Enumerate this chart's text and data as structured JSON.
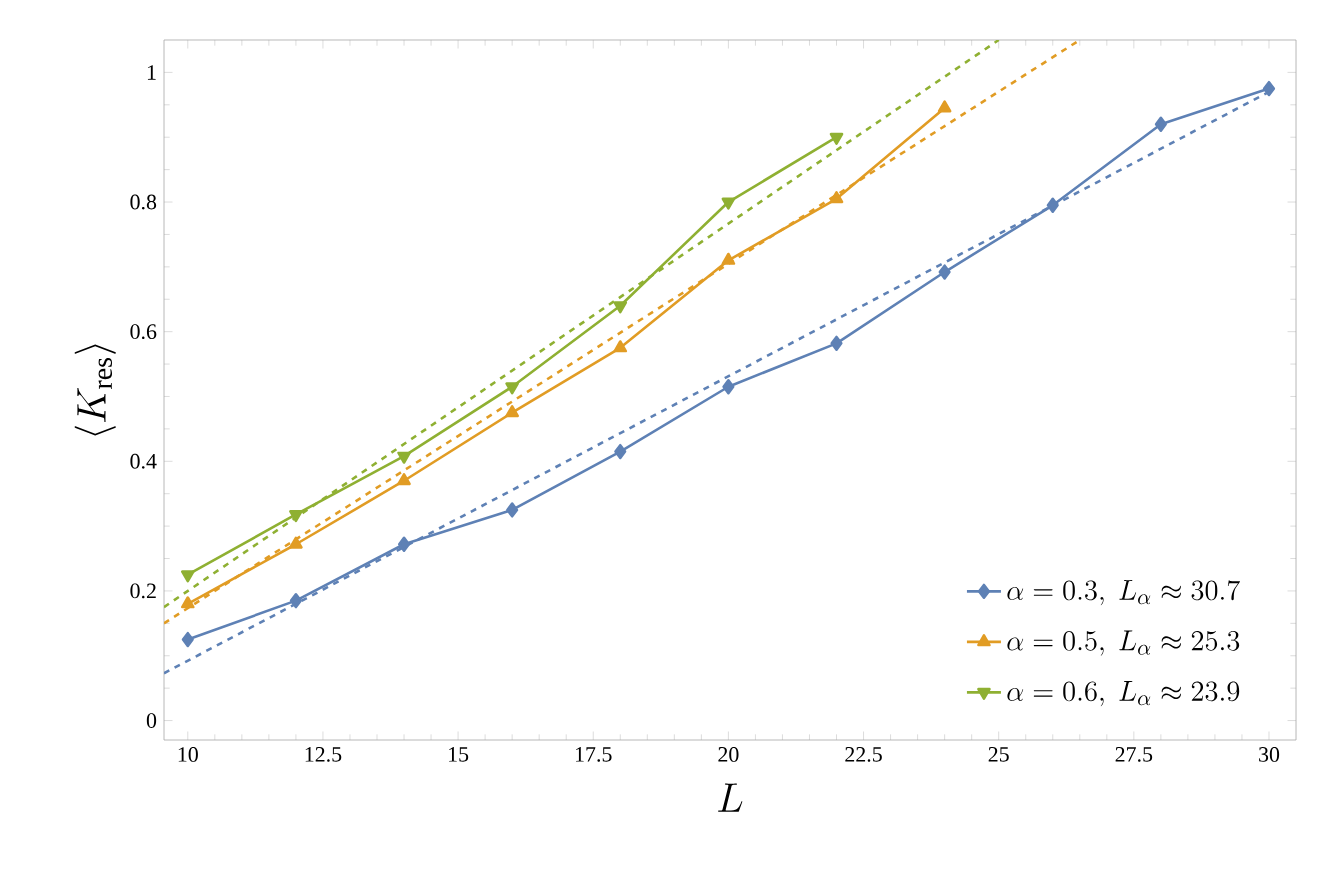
{
  "chart_data": {
    "type": "line",
    "xlabel": "L",
    "ylabel": "\\langle K_{\\mathrm{res}}\\rangle",
    "xlim": [
      9.56,
      30.5
    ],
    "ylim": [
      -0.03,
      1.05
    ],
    "xticks": [
      10,
      12.5,
      15,
      17.5,
      20,
      22.5,
      25,
      27.5,
      30
    ],
    "yticks": [
      {
        "value": 0,
        "label": "0"
      },
      {
        "value": 0.2,
        "label": "0.2"
      },
      {
        "value": 0.4,
        "label": "0.4"
      },
      {
        "value": 0.6,
        "label": "0.6"
      },
      {
        "value": 0.8,
        "label": "0.8"
      },
      {
        "value": 1,
        "label": "1"
      }
    ],
    "legend": "bottom right",
    "grid": false,
    "series": [
      {
        "name": "\\alpha = 0.3,\\ L_\\alpha \\approx 30.7",
        "color": "#5e81b5",
        "marker": "diamond",
        "line_style": "solid",
        "x": [
          10,
          12,
          14,
          16,
          18,
          20,
          22,
          24,
          26,
          28,
          30
        ],
        "values": [
          0.125,
          0.185,
          0.272,
          0.325,
          0.415,
          0.515,
          0.582,
          0.692,
          0.795,
          0.92,
          0.975
        ]
      },
      {
        "name": "\\alpha = 0.5,\\ L_\\alpha \\approx 25.3",
        "color": "#e19c24",
        "marker": "triangle",
        "line_style": "solid",
        "x": [
          10,
          12,
          14,
          16,
          18,
          20,
          22,
          24
        ],
        "values": [
          0.18,
          0.272,
          0.37,
          0.475,
          0.575,
          0.71,
          0.805,
          0.945
        ]
      },
      {
        "name": "\\alpha = 0.6,\\ L_\\alpha \\approx 23.9",
        "color": "#8fb032",
        "marker": "triangle-down",
        "line_style": "solid",
        "x": [
          10,
          12,
          14,
          16,
          18,
          20,
          22
        ],
        "values": [
          0.225,
          0.318,
          0.408,
          0.515,
          0.64,
          0.8,
          0.9
        ]
      },
      {
        "color": "#5e81b5",
        "marker": "none",
        "line_style": "dashed",
        "x": [
          9.56,
          30
        ],
        "values": [
          0.073,
          0.97
        ]
      },
      {
        "color": "#e19c24",
        "marker": "none",
        "line_style": "dashed",
        "x": [
          9.56,
          26.5
        ],
        "values": [
          0.15,
          1.05
        ]
      },
      {
        "color": "#8fb032",
        "marker": "none",
        "line_style": "dashed",
        "x": [
          9.56,
          25.0
        ],
        "values": [
          0.175,
          1.05
        ]
      }
    ]
  }
}
